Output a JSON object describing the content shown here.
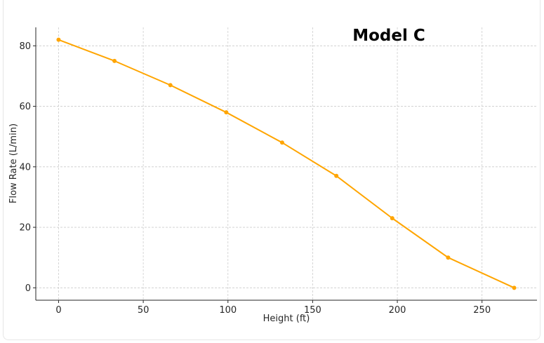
{
  "chart_data": {
    "type": "line",
    "title": "Model C",
    "xlabel": "Height (ft)",
    "ylabel": "Flow Rate (L/min)",
    "xlim": [
      -13.45,
      282.45
    ],
    "ylim": [
      -4.1,
      86.1
    ],
    "xticks": [
      0,
      50,
      100,
      150,
      200,
      250
    ],
    "yticks": [
      0,
      20,
      40,
      60,
      80
    ],
    "grid": true,
    "series": [
      {
        "name": "Model C",
        "color": "#FFA500",
        "x": [
          0,
          33,
          66,
          99,
          132,
          164,
          197,
          230,
          269
        ],
        "y": [
          82,
          75,
          67,
          58,
          48,
          37,
          23,
          10,
          0
        ]
      }
    ]
  }
}
